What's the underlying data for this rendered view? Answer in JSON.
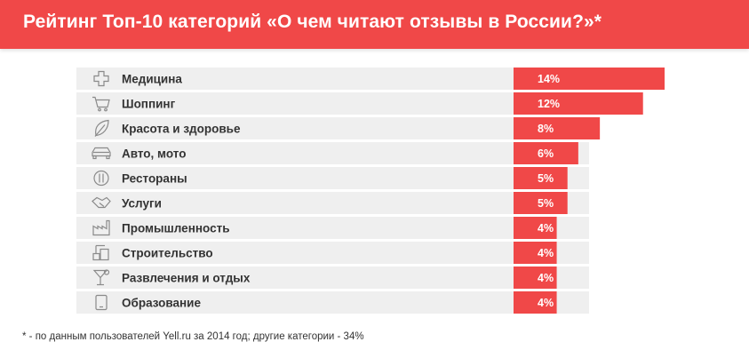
{
  "header": {
    "title": "Рейтинг Топ-10 категорий «О чем читают отзывы в России?»*"
  },
  "colors": {
    "accent": "#f04848",
    "row_background": "#efefef",
    "icon": "#8a8a8a",
    "text": "#333333"
  },
  "chart_data": {
    "type": "bar",
    "orientation": "horizontal",
    "title": "Рейтинг Топ-10 категорий «О чем читают отзывы в России?»*",
    "categories": [
      "Медицина",
      "Шоппинг",
      "Красота и здоровье",
      "Авто, мото",
      "Рестораны",
      "Услуги",
      "Промышленность",
      "Строительство",
      "Развлечения и отдых",
      "Образование"
    ],
    "icons": [
      "medical-cross-icon",
      "shopping-cart-icon",
      "leaf-icon",
      "car-icon",
      "fork-knife-icon",
      "handshake-icon",
      "factory-icon",
      "construction-icon",
      "cocktail-icon",
      "tablet-icon"
    ],
    "values": [
      14,
      12,
      8,
      6,
      5,
      5,
      4,
      4,
      4,
      4
    ],
    "value_labels": [
      "14%",
      "12%",
      "8%",
      "6%",
      "5%",
      "5%",
      "4%",
      "4%",
      "4%",
      "4%"
    ],
    "unit": "%"
  },
  "footnote": "* - по данным пользователей Yell.ru за 2014 год; другие категории - 34%"
}
